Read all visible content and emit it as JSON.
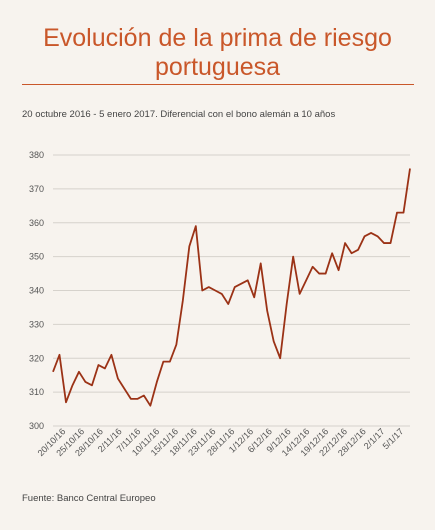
{
  "header": {
    "title_line1": "Evolución de la prima de riesgo",
    "title_line2": "portuguesa",
    "subtitle": "20 octubre 2016 - 5 enero 2017. Diferencial con el bono alemán a 10 años"
  },
  "footer": {
    "source": "Fuente: Banco Central Europeo"
  },
  "colors": {
    "line": "#9b3216",
    "accent": "#c9572a",
    "grid": "#d6d2cc"
  },
  "chart_data": {
    "type": "line",
    "title": "Evolución de la prima de riesgo portuguesa",
    "xlabel": "",
    "ylabel": "",
    "ylim": [
      300,
      380
    ],
    "yticks": [
      300,
      310,
      320,
      330,
      340,
      350,
      360,
      370,
      380
    ],
    "grid": true,
    "xtick_labels": [
      "20/10/16",
      "25/10/16",
      "28/10/16",
      "2/11/16",
      "7/11/16",
      "10/11/16",
      "15/11/16",
      "18/11/16",
      "23/11/16",
      "28/11/16",
      "1/12/16",
      "6/12/16",
      "9/12/16",
      "14/12/16",
      "19/12/16",
      "22/12/16",
      "28/12/16",
      "2/1/17",
      "5/1/17"
    ],
    "series": [
      {
        "values": [
          316,
          321,
          307,
          312,
          316,
          313,
          312,
          318,
          317,
          321,
          314,
          311,
          308,
          308,
          309,
          306,
          313,
          319,
          319,
          324,
          337,
          353,
          359,
          340,
          341,
          340,
          339,
          336,
          341,
          342,
          343,
          338,
          348,
          334,
          325,
          320,
          336,
          350,
          339,
          343,
          347,
          345,
          345,
          351,
          346,
          354,
          351,
          352,
          356,
          357,
          356,
          354,
          354,
          363,
          363,
          376
        ]
      }
    ]
  }
}
